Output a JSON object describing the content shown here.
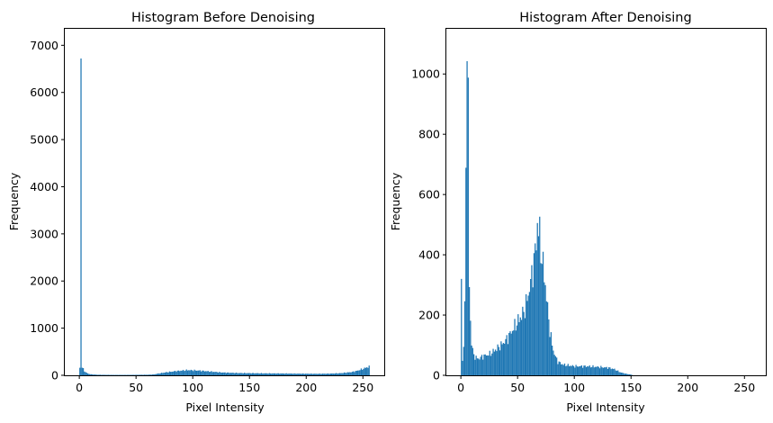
{
  "chart_data": [
    {
      "type": "bar",
      "title": "Histogram Before Denoising",
      "xlabel": "Pixel Intensity",
      "ylabel": "Frequency",
      "xlim": [
        -12.8,
        268.8
      ],
      "ylim": [
        0,
        7350
      ],
      "xticks": [
        0,
        50,
        100,
        150,
        200,
        250
      ],
      "yticks": [
        0,
        1000,
        2000,
        3000,
        4000,
        5000,
        6000,
        7000
      ],
      "bar_color": "#1f77b4",
      "points": [
        [
          0,
          160
        ],
        [
          1,
          7000
        ],
        [
          2,
          170
        ],
        [
          3,
          130
        ],
        [
          4,
          90
        ],
        [
          5,
          70
        ],
        [
          6,
          50
        ],
        [
          8,
          30
        ],
        [
          10,
          20
        ],
        [
          15,
          12
        ],
        [
          20,
          10
        ],
        [
          30,
          8
        ],
        [
          40,
          8
        ],
        [
          50,
          10
        ],
        [
          60,
          12
        ],
        [
          65,
          18
        ],
        [
          70,
          40
        ],
        [
          75,
          60
        ],
        [
          80,
          75
        ],
        [
          85,
          90
        ],
        [
          90,
          100
        ],
        [
          95,
          110
        ],
        [
          100,
          105
        ],
        [
          105,
          100
        ],
        [
          110,
          90
        ],
        [
          115,
          80
        ],
        [
          120,
          70
        ],
        [
          125,
          60
        ],
        [
          130,
          55
        ],
        [
          140,
          48
        ],
        [
          150,
          45
        ],
        [
          160,
          42
        ],
        [
          170,
          40
        ],
        [
          180,
          38
        ],
        [
          190,
          35
        ],
        [
          200,
          33
        ],
        [
          210,
          32
        ],
        [
          220,
          35
        ],
        [
          230,
          45
        ],
        [
          240,
          70
        ],
        [
          245,
          100
        ],
        [
          250,
          140
        ],
        [
          253,
          170
        ],
        [
          255,
          180
        ]
      ]
    },
    {
      "type": "bar",
      "title": "Histogram After Denoising",
      "xlabel": "Pixel Intensity",
      "ylabel": "Frequency",
      "xlim": [
        -12.8,
        268.8
      ],
      "ylim": [
        0,
        1150
      ],
      "xticks": [
        0,
        50,
        100,
        150,
        200,
        250
      ],
      "yticks": [
        0,
        200,
        400,
        600,
        800,
        1000
      ],
      "bar_color": "#1f77b4",
      "points": [
        [
          0,
          320
        ],
        [
          1,
          50
        ],
        [
          2,
          100
        ],
        [
          3,
          210
        ],
        [
          4,
          780
        ],
        [
          5,
          1090
        ],
        [
          6,
          900
        ],
        [
          7,
          300
        ],
        [
          8,
          180
        ],
        [
          9,
          110
        ],
        [
          10,
          80
        ],
        [
          12,
          60
        ],
        [
          15,
          55
        ],
        [
          20,
          65
        ],
        [
          25,
          70
        ],
        [
          30,
          85
        ],
        [
          35,
          100
        ],
        [
          40,
          120
        ],
        [
          45,
          150
        ],
        [
          50,
          180
        ],
        [
          55,
          210
        ],
        [
          58,
          250
        ],
        [
          60,
          290
        ],
        [
          62,
          330
        ],
        [
          64,
          380
        ],
        [
          66,
          440
        ],
        [
          67,
          510
        ],
        [
          68,
          480
        ],
        [
          69,
          460
        ],
        [
          70,
          420
        ],
        [
          72,
          360
        ],
        [
          74,
          300
        ],
        [
          76,
          220
        ],
        [
          78,
          150
        ],
        [
          80,
          100
        ],
        [
          82,
          70
        ],
        [
          85,
          45
        ],
        [
          90,
          35
        ],
        [
          100,
          30
        ],
        [
          110,
          30
        ],
        [
          120,
          28
        ],
        [
          130,
          25
        ],
        [
          135,
          20
        ],
        [
          140,
          10
        ],
        [
          145,
          5
        ],
        [
          150,
          2
        ]
      ]
    }
  ]
}
